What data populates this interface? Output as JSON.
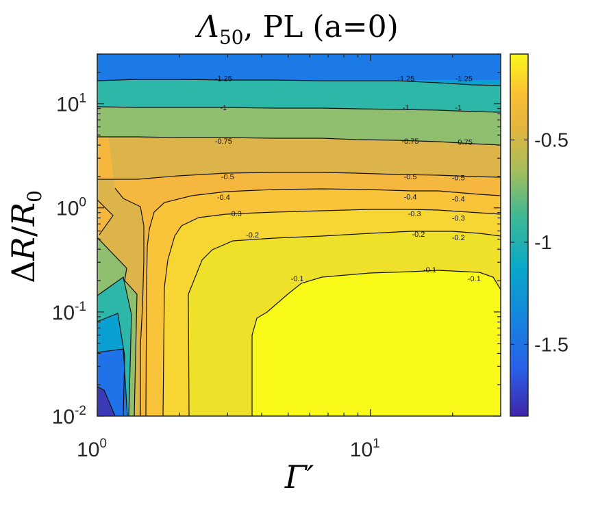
{
  "chart_data": {
    "type": "contour",
    "title": "Λ50, PL (a=0)",
    "title_parts": {
      "symbol": "Λ",
      "subscript": "50",
      "rest": ", PL (a=0)"
    },
    "xlabel": "Γ′",
    "ylabel": "ΔR/R0",
    "ylabel_parts": {
      "delta": "Δ",
      "r": "R",
      "slash": "/",
      "r0": "R",
      "sub": "0"
    },
    "x_scale": "log",
    "y_scale": "log",
    "xlim": [
      1,
      30
    ],
    "ylim": [
      0.01,
      30
    ],
    "x_ticks": [
      {
        "value": 1,
        "base": "10",
        "exp": "0"
      },
      {
        "value": 10,
        "base": "10",
        "exp": "1"
      }
    ],
    "y_ticks": [
      {
        "value": 0.01,
        "base": "10",
        "exp": "-2"
      },
      {
        "value": 0.1,
        "base": "10",
        "exp": "-1"
      },
      {
        "value": 1,
        "base": "10",
        "exp": "0"
      },
      {
        "value": 10,
        "base": "10",
        "exp": "1"
      }
    ],
    "colorbar": {
      "colormap": "parula",
      "range": [
        -1.85,
        -0.08
      ],
      "ticks": [
        {
          "value": -1.5,
          "label": "-1.5"
        },
        {
          "value": -1,
          "label": "-1"
        },
        {
          "value": -0.5,
          "label": "-0.5"
        }
      ]
    },
    "contour_levels": [
      -1.75,
      -1.5,
      -1.25,
      -1,
      -0.75,
      -0.5,
      -0.4,
      -0.3,
      -0.2,
      -0.1
    ],
    "contour_lines": [
      {
        "level": -1.25,
        "labels": [
          {
            "text": "-1.25",
            "x": 2.9,
            "y": 17.5
          },
          {
            "text": "-1.25",
            "x": 13.5,
            "y": 17.5
          },
          {
            "text": "-1.25",
            "x": 22,
            "y": 17.5
          }
        ]
      },
      {
        "level": -1,
        "labels": [
          {
            "text": "-1",
            "x": 2.9,
            "y": 9.2
          },
          {
            "text": "-1",
            "x": 13.5,
            "y": 9.2
          },
          {
            "text": "-1",
            "x": 21,
            "y": 9.2
          }
        ]
      },
      {
        "level": -0.75,
        "labels": [
          {
            "text": "-0.75",
            "x": 2.9,
            "y": 4.4
          },
          {
            "text": "-0.75",
            "x": 14,
            "y": 4.4
          },
          {
            "text": "-0.75",
            "x": 22,
            "y": 4.3
          }
        ]
      },
      {
        "level": -0.5,
        "labels": [
          {
            "text": "-0.5",
            "x": 3.0,
            "y": 2.0
          },
          {
            "text": "-0.5",
            "x": 14,
            "y": 2.0
          },
          {
            "text": "-0.5",
            "x": 21,
            "y": 1.95
          }
        ]
      },
      {
        "level": -0.4,
        "labels": [
          {
            "text": "-0.4",
            "x": 2.9,
            "y": 1.27
          },
          {
            "text": "-0.4",
            "x": 14,
            "y": 1.28
          },
          {
            "text": "-0.4",
            "x": 21,
            "y": 1.22
          }
        ]
      },
      {
        "level": -0.3,
        "labels": [
          {
            "text": "-0.3",
            "x": 3.2,
            "y": 0.88
          },
          {
            "text": "-0.3",
            "x": 14.5,
            "y": 0.88
          },
          {
            "text": "-0.3",
            "x": 21,
            "y": 0.8
          }
        ]
      },
      {
        "level": -0.2,
        "labels": [
          {
            "text": "-0.2",
            "x": 3.7,
            "y": 0.55
          },
          {
            "text": "-0.2",
            "x": 15,
            "y": 0.56
          },
          {
            "text": "-0.2",
            "x": 21,
            "y": 0.52
          }
        ]
      },
      {
        "level": -0.1,
        "labels": [
          {
            "text": "-0.1",
            "x": 5.4,
            "y": 0.21
          },
          {
            "text": "-0.1",
            "x": 16.5,
            "y": 0.255
          },
          {
            "text": "-0.1",
            "x": 24,
            "y": 0.21
          }
        ]
      }
    ],
    "grid": false
  }
}
